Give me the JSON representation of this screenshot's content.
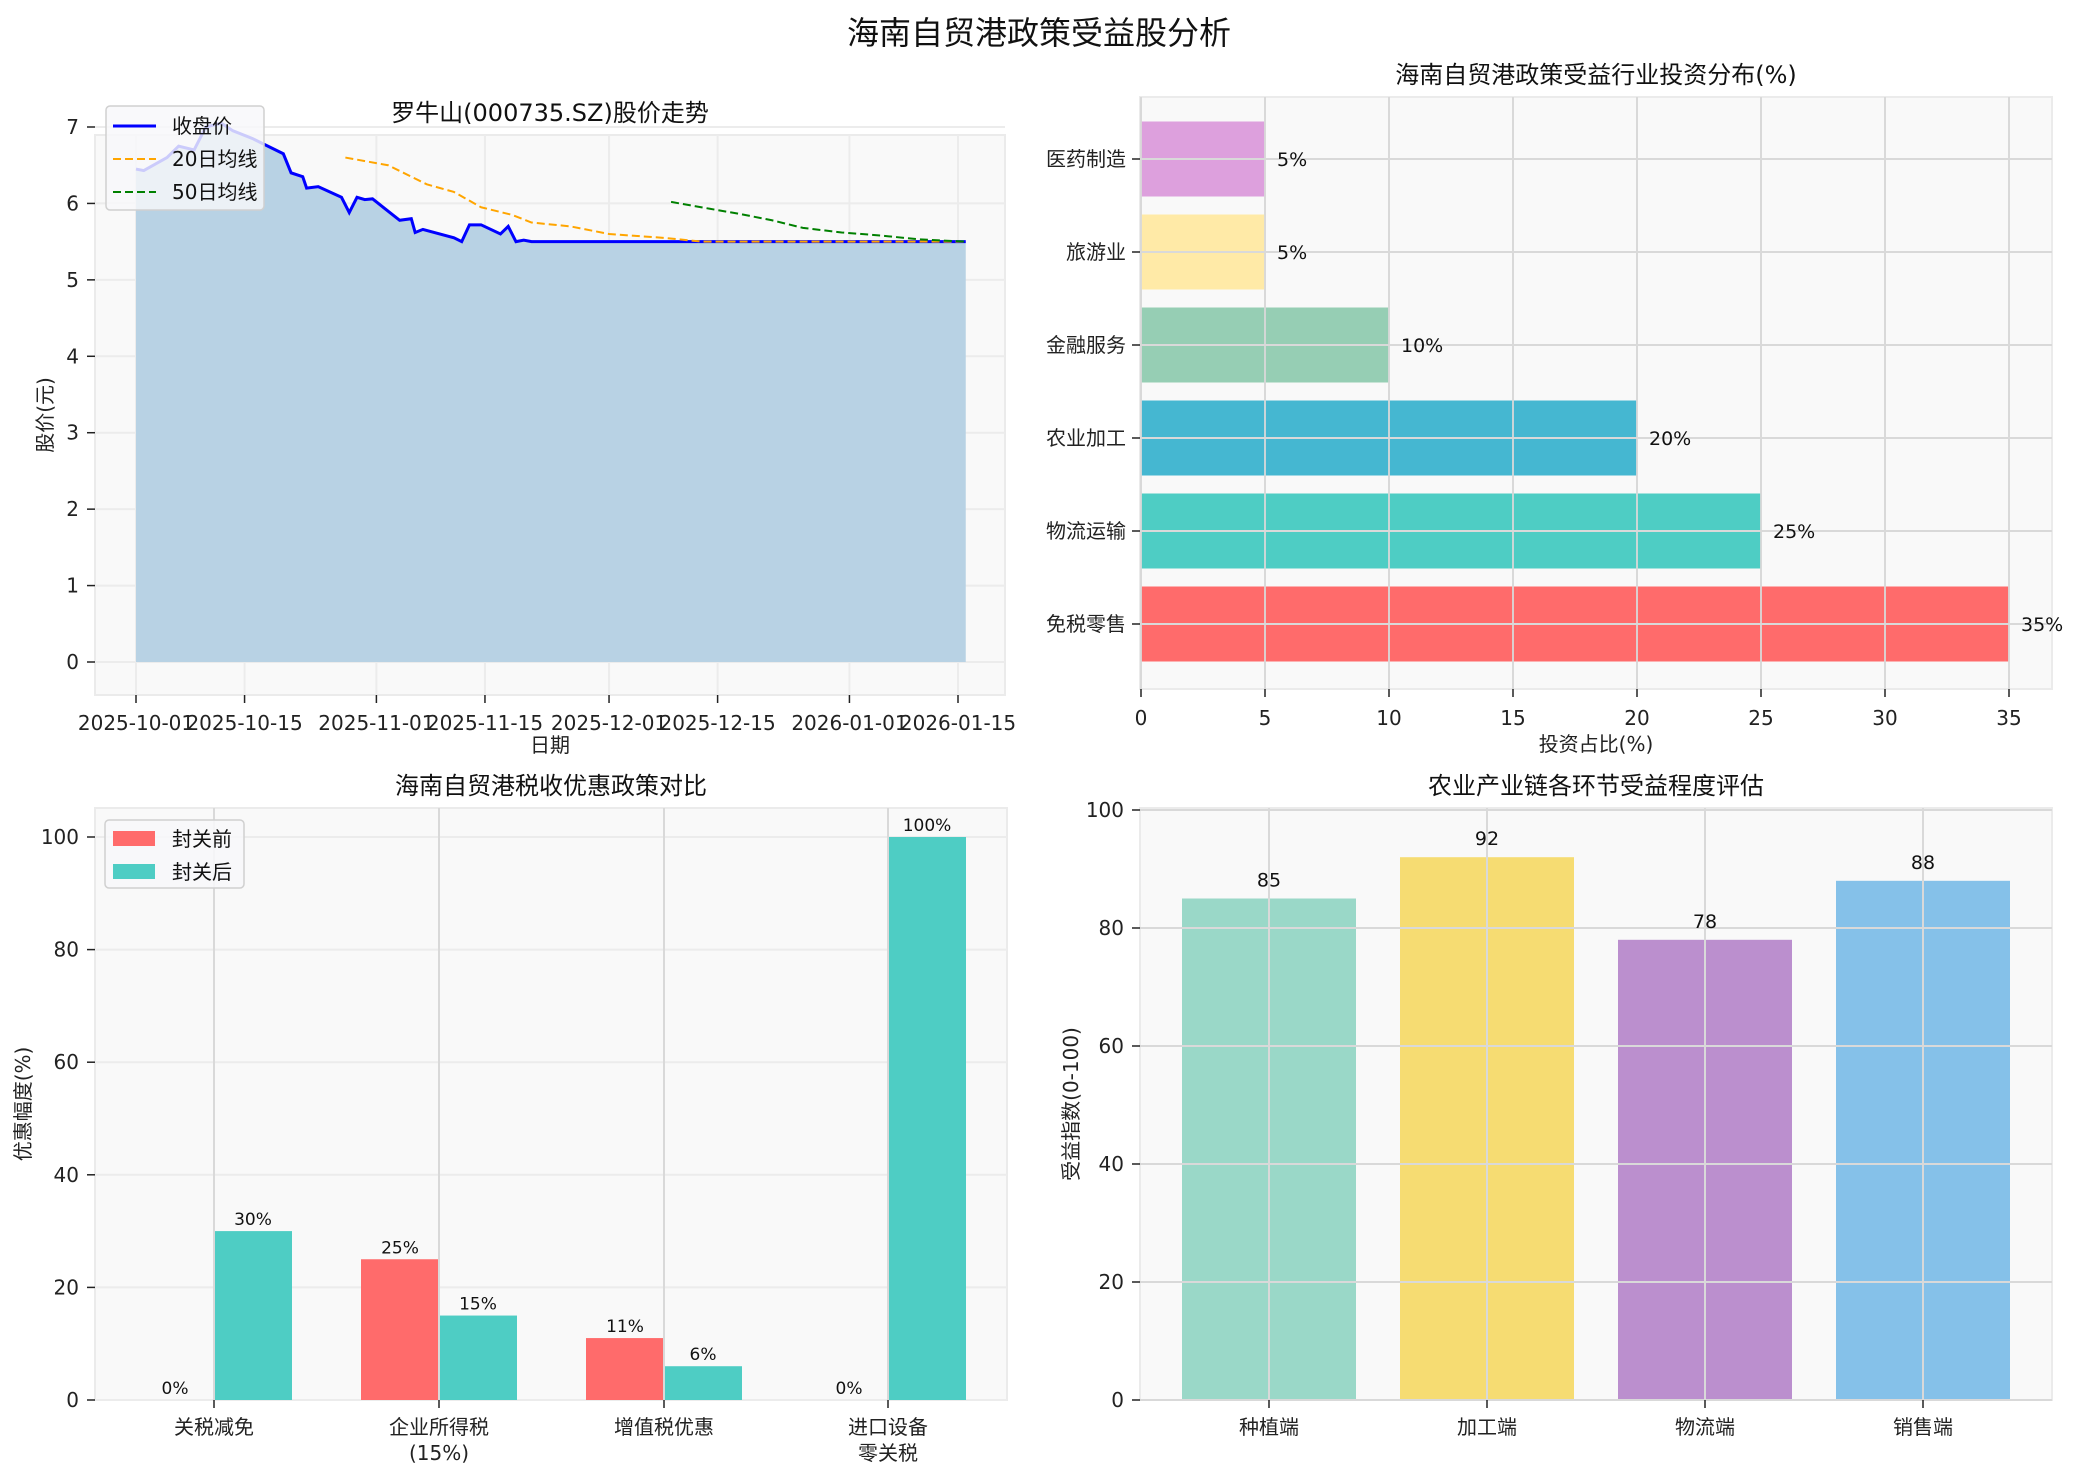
{
  "figure": {
    "title": "海南自贸港政策受益股分析"
  },
  "chart_data": [
    {
      "id": "stock",
      "type": "line",
      "title": "罗牛山(000735.SZ)股价走势",
      "xlabel": "日期",
      "ylabel": "股价(元)",
      "ylim": [
        -0.4,
        7.4
      ],
      "yticks": [
        0,
        1,
        2,
        3,
        4,
        5,
        6,
        7
      ],
      "xticks": [
        "2025-10-01",
        "2025-10-15",
        "2025-11-01",
        "2025-11-15",
        "2025-12-01",
        "2025-12-15",
        "2026-01-01",
        "2026-01-15"
      ],
      "xtick_days": [
        0,
        14,
        31,
        45,
        61,
        75,
        92,
        106
      ],
      "xlim_days": [
        -5.5,
        111
      ],
      "grid": true,
      "fill_under_close": true,
      "legend_position": "upper left",
      "series": [
        {
          "name": "收盘价",
          "color": "#0000ff",
          "style": "solid",
          "points": [
            [
              0,
              6.45
            ],
            [
              1,
              6.43
            ],
            [
              4,
              6.6
            ],
            [
              5.5,
              6.75
            ],
            [
              7.5,
              6.7
            ],
            [
              9,
              7.0
            ],
            [
              11,
              7.05
            ],
            [
              12.5,
              6.95
            ],
            [
              15,
              6.85
            ],
            [
              17,
              6.75
            ],
            [
              19,
              6.65
            ],
            [
              20,
              6.4
            ],
            [
              21.5,
              6.35
            ],
            [
              22,
              6.2
            ],
            [
              23.5,
              6.22
            ],
            [
              26.5,
              6.08
            ],
            [
              27.5,
              5.88
            ],
            [
              28.5,
              6.08
            ],
            [
              29.5,
              6.05
            ],
            [
              30.5,
              6.06
            ],
            [
              34,
              5.78
            ],
            [
              35.5,
              5.8
            ],
            [
              36,
              5.62
            ],
            [
              37,
              5.66
            ],
            [
              41,
              5.55
            ],
            [
              42,
              5.5
            ],
            [
              43,
              5.72
            ],
            [
              44.5,
              5.72
            ],
            [
              47,
              5.6
            ],
            [
              48,
              5.7
            ],
            [
              49,
              5.5
            ],
            [
              50,
              5.52
            ],
            [
              51,
              5.5
            ],
            [
              60,
              5.5
            ],
            [
              70,
              5.5
            ],
            [
              80,
              5.5
            ],
            [
              90,
              5.5
            ],
            [
              100,
              5.5
            ],
            [
              107,
              5.5
            ]
          ]
        },
        {
          "name": "20日均线",
          "color": "#ffa500",
          "style": "dashed",
          "points": [
            [
              27,
              6.6
            ],
            [
              32.5,
              6.5
            ],
            [
              37.5,
              6.25
            ],
            [
              41,
              6.15
            ],
            [
              44.5,
              5.95
            ],
            [
              48.5,
              5.85
            ],
            [
              51,
              5.75
            ],
            [
              56,
              5.7
            ],
            [
              61,
              5.6
            ],
            [
              68,
              5.55
            ],
            [
              73,
              5.5
            ],
            [
              80,
              5.5
            ],
            [
              90,
              5.5
            ],
            [
              100,
              5.5
            ],
            [
              107,
              5.5
            ]
          ]
        },
        {
          "name": "50日均线",
          "color": "#008000",
          "style": "dashed",
          "points": [
            [
              69,
              6.02
            ],
            [
              74,
              5.93
            ],
            [
              78,
              5.86
            ],
            [
              82,
              5.78
            ],
            [
              86,
              5.68
            ],
            [
              91,
              5.62
            ],
            [
              96,
              5.58
            ],
            [
              101,
              5.53
            ],
            [
              107,
              5.5
            ]
          ]
        }
      ]
    },
    {
      "id": "industry",
      "type": "bar",
      "orientation": "horizontal",
      "title": "海南自贸港政策受益行业投资分布(%)",
      "xlabel": "投资占比(%)",
      "ylabel": "",
      "xlim": [
        0,
        36.8
      ],
      "xticks": [
        0,
        5,
        10,
        15,
        20,
        25,
        30,
        35
      ],
      "grid": true,
      "categories": [
        "免税零售",
        "物流运输",
        "农业加工",
        "金融服务",
        "旅游业",
        "医药制造"
      ],
      "values": [
        35,
        25,
        20,
        10,
        5,
        5
      ],
      "value_labels": [
        "35%",
        "25%",
        "20%",
        "10%",
        "5%",
        "5%"
      ],
      "colors": [
        "#ff6b6b",
        "#4ecdc4",
        "#45b7d1",
        "#96ceb4",
        "#ffeaa7",
        "#dda0dd"
      ]
    },
    {
      "id": "tax",
      "type": "bar",
      "orientation": "vertical",
      "grouped": true,
      "title": "海南自贸港税收优惠政策对比",
      "xlabel": "",
      "ylabel": "优惠幅度(%)",
      "ylim": [
        0,
        105
      ],
      "yticks": [
        0,
        20,
        40,
        60,
        80,
        100
      ],
      "grid": true,
      "legend_position": "upper left",
      "categories": [
        "关税减免",
        "企业所得税\n(15%)",
        "增值税优惠",
        "进口设备\n零关税"
      ],
      "series": [
        {
          "name": "封关前",
          "color": "#ff6b6b",
          "values": [
            0,
            25,
            11,
            0
          ],
          "value_labels": [
            "0%",
            "25%",
            "11%",
            "0%"
          ]
        },
        {
          "name": "封关后",
          "color": "#4ecdc4",
          "values": [
            30,
            15,
            6,
            100
          ],
          "value_labels": [
            "30%",
            "15%",
            "6%",
            "100%"
          ]
        }
      ]
    },
    {
      "id": "agri",
      "type": "bar",
      "orientation": "vertical",
      "title": "农业产业链各环节受益程度评估",
      "xlabel": "",
      "ylabel": "受益指数(0-100)",
      "ylim": [
        0,
        100
      ],
      "yticks": [
        0,
        20,
        40,
        60,
        80,
        100
      ],
      "grid": true,
      "categories": [
        "种植端",
        "加工端",
        "物流端",
        "销售端"
      ],
      "values": [
        85,
        92,
        78,
        88
      ],
      "value_labels": [
        "85",
        "92",
        "78",
        "88"
      ],
      "colors": [
        "#9ad8c8",
        "#f6dc72",
        "#bb8fce",
        "#85c1e9"
      ]
    }
  ],
  "style": {
    "axes_bg": "#f9f9f9",
    "grid_color": "#d9d9d9",
    "grid_color_light": "#ececec",
    "fill_color": "#b8d2e4"
  }
}
